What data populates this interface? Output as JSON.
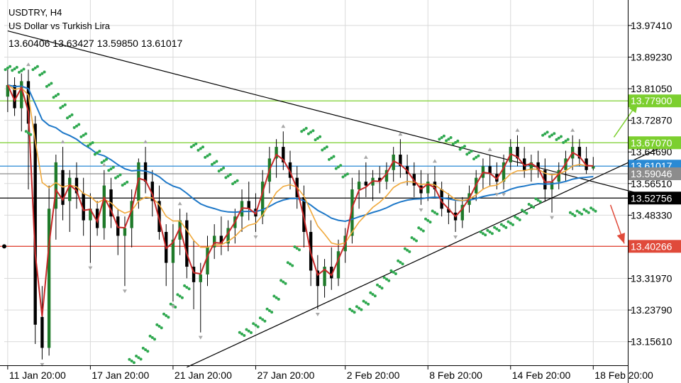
{
  "header": {
    "symbol_timeframe": "USDTRY, H4",
    "description": "US Dollar vs Turkish Lira",
    "ohlc": "13.60406 13.63427 13.59850 13.61017"
  },
  "colors": {
    "candle": "#1f7a2a",
    "price_line": "#c62828",
    "fast_ma": "#f0a93c",
    "slow_ma": "#1e78c8",
    "psar": "#2fa84f",
    "resistance": "#7ccf2f",
    "support": "#e04a3a",
    "current_price": "#2a8ad4",
    "current_marker": "#8c8c8c",
    "trendline": "#000000",
    "fractal_arrow": "#a8a8a8"
  },
  "chart_data": {
    "type": "candlestick",
    "title": "",
    "xlabel": "",
    "ylabel": "",
    "ylim": [
      13.095,
      14.04
    ],
    "x_ticks": [
      "11 Jan 20:00",
      "17 Jan 20:00",
      "21 Jan 20:00",
      "27 Jan 20:00",
      "2 Feb 20:00",
      "8 Feb 20:00",
      "14 Feb 20:00",
      "18 Feb 20:00"
    ],
    "y_ticks": [
      "13.97410",
      "13.89230",
      "13.81050",
      "13.72870",
      "13.64690",
      "13.56510",
      "13.48330",
      "13.31970",
      "13.23790",
      "13.15610"
    ],
    "grid": true,
    "horizontal_levels": [
      {
        "label": "13.77900",
        "value": 13.779,
        "color": "resistance",
        "badge_color": "#7ccf2f"
      },
      {
        "label": "13.67070",
        "value": 13.6707,
        "color": "resistance",
        "badge_color": "#7ccf2f"
      },
      {
        "label": "13.61017",
        "value": 13.61017,
        "color": "current_price",
        "badge_color": "#2a8ad4"
      },
      {
        "label": "13.59046",
        "value": 13.59046,
        "color": "current_marker",
        "badge_color": "#8c8c8c"
      },
      {
        "label": "13.52756",
        "value": 13.52756,
        "color": "trendline",
        "badge_color": "#000000"
      },
      {
        "label": "13.40266",
        "value": 13.40266,
        "color": "support",
        "badge_color": "#e04a3a"
      }
    ],
    "trendlines": [
      {
        "name": "upper",
        "from": {
          "x_index": 0,
          "y": 13.96
        },
        "to": {
          "x_index": 95,
          "y": 13.524
        }
      },
      {
        "name": "lower",
        "from": {
          "x_index": 26,
          "y": 13.09
        },
        "to": {
          "x_index": 95,
          "y": 13.66
        }
      }
    ],
    "projection_arrows": [
      {
        "direction": "up",
        "from": {
          "x_index": 88,
          "y": 13.685
        },
        "to": {
          "x_index": 91.5,
          "y": 13.775
        }
      },
      {
        "direction": "down",
        "from": {
          "x_index": 87.5,
          "y": 13.51
        },
        "to": {
          "x_index": 89.5,
          "y": 13.41
        }
      }
    ],
    "candles": [
      {
        "o": 13.79,
        "h": 13.86,
        "l": 13.75,
        "c": 13.82
      },
      {
        "o": 13.82,
        "h": 13.84,
        "l": 13.74,
        "c": 13.76
      },
      {
        "o": 13.76,
        "h": 13.85,
        "l": 13.7,
        "c": 13.83
      },
      {
        "o": 13.83,
        "h": 13.86,
        "l": 13.55,
        "c": 13.72
      },
      {
        "o": 13.72,
        "h": 13.74,
        "l": 13.15,
        "c": 13.2
      },
      {
        "o": 13.22,
        "h": 13.3,
        "l": 13.11,
        "c": 13.14
      },
      {
        "o": 13.14,
        "h": 13.56,
        "l": 13.12,
        "c": 13.5
      },
      {
        "o": 13.5,
        "h": 13.64,
        "l": 13.42,
        "c": 13.62
      },
      {
        "o": 13.6,
        "h": 13.66,
        "l": 13.47,
        "c": 13.51
      },
      {
        "o": 13.52,
        "h": 13.6,
        "l": 13.44,
        "c": 13.58
      },
      {
        "o": 13.58,
        "h": 13.62,
        "l": 13.5,
        "c": 13.54
      },
      {
        "o": 13.54,
        "h": 13.58,
        "l": 13.43,
        "c": 13.47
      },
      {
        "o": 13.47,
        "h": 13.54,
        "l": 13.36,
        "c": 13.5
      },
      {
        "o": 13.5,
        "h": 13.52,
        "l": 13.43,
        "c": 13.45
      },
      {
        "o": 13.45,
        "h": 13.6,
        "l": 13.42,
        "c": 13.56
      },
      {
        "o": 13.55,
        "h": 13.58,
        "l": 13.45,
        "c": 13.48
      },
      {
        "o": 13.48,
        "h": 13.5,
        "l": 13.38,
        "c": 13.43
      },
      {
        "o": 13.43,
        "h": 13.48,
        "l": 13.3,
        "c": 13.45
      },
      {
        "o": 13.45,
        "h": 13.55,
        "l": 13.4,
        "c": 13.52
      },
      {
        "o": 13.52,
        "h": 13.63,
        "l": 13.5,
        "c": 13.62
      },
      {
        "o": 13.62,
        "h": 13.66,
        "l": 13.54,
        "c": 13.57
      },
      {
        "o": 13.57,
        "h": 13.6,
        "l": 13.48,
        "c": 13.52
      },
      {
        "o": 13.52,
        "h": 13.56,
        "l": 13.42,
        "c": 13.44
      },
      {
        "o": 13.44,
        "h": 13.46,
        "l": 13.3,
        "c": 13.36
      },
      {
        "o": 13.36,
        "h": 13.46,
        "l": 13.26,
        "c": 13.42
      },
      {
        "o": 13.42,
        "h": 13.5,
        "l": 13.38,
        "c": 13.47
      },
      {
        "o": 13.47,
        "h": 13.49,
        "l": 13.32,
        "c": 13.35
      },
      {
        "o": 13.35,
        "h": 13.42,
        "l": 13.24,
        "c": 13.31
      },
      {
        "o": 13.31,
        "h": 13.36,
        "l": 13.18,
        "c": 13.33
      },
      {
        "o": 13.33,
        "h": 13.43,
        "l": 13.3,
        "c": 13.4
      },
      {
        "o": 13.4,
        "h": 13.46,
        "l": 13.37,
        "c": 13.43
      },
      {
        "o": 13.43,
        "h": 13.48,
        "l": 13.38,
        "c": 13.41
      },
      {
        "o": 13.41,
        "h": 13.47,
        "l": 13.39,
        "c": 13.45
      },
      {
        "o": 13.45,
        "h": 13.5,
        "l": 13.41,
        "c": 13.48
      },
      {
        "o": 13.48,
        "h": 13.55,
        "l": 13.44,
        "c": 13.52
      },
      {
        "o": 13.52,
        "h": 13.57,
        "l": 13.47,
        "c": 13.5
      },
      {
        "o": 13.5,
        "h": 13.54,
        "l": 13.44,
        "c": 13.48
      },
      {
        "o": 13.48,
        "h": 13.6,
        "l": 13.46,
        "c": 13.57
      },
      {
        "o": 13.57,
        "h": 13.66,
        "l": 13.54,
        "c": 13.63
      },
      {
        "o": 13.63,
        "h": 13.68,
        "l": 13.58,
        "c": 13.66
      },
      {
        "o": 13.66,
        "h": 13.7,
        "l": 13.6,
        "c": 13.62
      },
      {
        "o": 13.62,
        "h": 13.65,
        "l": 13.55,
        "c": 13.58
      },
      {
        "o": 13.58,
        "h": 13.61,
        "l": 13.5,
        "c": 13.53
      },
      {
        "o": 13.53,
        "h": 13.56,
        "l": 13.4,
        "c": 13.44
      },
      {
        "o": 13.44,
        "h": 13.47,
        "l": 13.3,
        "c": 13.34
      },
      {
        "o": 13.34,
        "h": 13.38,
        "l": 13.24,
        "c": 13.3
      },
      {
        "o": 13.3,
        "h": 13.37,
        "l": 13.27,
        "c": 13.35
      },
      {
        "o": 13.35,
        "h": 13.4,
        "l": 13.29,
        "c": 13.32
      },
      {
        "o": 13.32,
        "h": 13.42,
        "l": 13.3,
        "c": 13.39
      },
      {
        "o": 13.39,
        "h": 13.45,
        "l": 13.36,
        "c": 13.43
      },
      {
        "o": 13.43,
        "h": 13.58,
        "l": 13.41,
        "c": 13.55
      },
      {
        "o": 13.55,
        "h": 13.6,
        "l": 13.5,
        "c": 13.57
      },
      {
        "o": 13.57,
        "h": 13.62,
        "l": 13.53,
        "c": 13.56
      },
      {
        "o": 13.56,
        "h": 13.6,
        "l": 13.52,
        "c": 13.58
      },
      {
        "o": 13.58,
        "h": 13.61,
        "l": 13.54,
        "c": 13.57
      },
      {
        "o": 13.57,
        "h": 13.62,
        "l": 13.55,
        "c": 13.6
      },
      {
        "o": 13.6,
        "h": 13.66,
        "l": 13.57,
        "c": 13.64
      },
      {
        "o": 13.64,
        "h": 13.68,
        "l": 13.58,
        "c": 13.61
      },
      {
        "o": 13.61,
        "h": 13.64,
        "l": 13.56,
        "c": 13.59
      },
      {
        "o": 13.59,
        "h": 13.62,
        "l": 13.53,
        "c": 13.56
      },
      {
        "o": 13.56,
        "h": 13.6,
        "l": 13.51,
        "c": 13.54
      },
      {
        "o": 13.54,
        "h": 13.59,
        "l": 13.52,
        "c": 13.57
      },
      {
        "o": 13.57,
        "h": 13.61,
        "l": 13.53,
        "c": 13.55
      },
      {
        "o": 13.55,
        "h": 13.57,
        "l": 13.48,
        "c": 13.5
      },
      {
        "o": 13.5,
        "h": 13.54,
        "l": 13.46,
        "c": 13.49
      },
      {
        "o": 13.49,
        "h": 13.52,
        "l": 13.44,
        "c": 13.47
      },
      {
        "o": 13.47,
        "h": 13.53,
        "l": 13.45,
        "c": 13.51
      },
      {
        "o": 13.51,
        "h": 13.56,
        "l": 13.49,
        "c": 13.54
      },
      {
        "o": 13.54,
        "h": 13.6,
        "l": 13.52,
        "c": 13.58
      },
      {
        "o": 13.58,
        "h": 13.63,
        "l": 13.55,
        "c": 13.61
      },
      {
        "o": 13.61,
        "h": 13.64,
        "l": 13.56,
        "c": 13.59
      },
      {
        "o": 13.59,
        "h": 13.62,
        "l": 13.55,
        "c": 13.57
      },
      {
        "o": 13.57,
        "h": 13.64,
        "l": 13.55,
        "c": 13.62
      },
      {
        "o": 13.62,
        "h": 13.68,
        "l": 13.6,
        "c": 13.66
      },
      {
        "o": 13.66,
        "h": 13.69,
        "l": 13.61,
        "c": 13.63
      },
      {
        "o": 13.63,
        "h": 13.66,
        "l": 13.58,
        "c": 13.6
      },
      {
        "o": 13.6,
        "h": 13.64,
        "l": 13.57,
        "c": 13.62
      },
      {
        "o": 13.62,
        "h": 13.65,
        "l": 13.58,
        "c": 13.6
      },
      {
        "o": 13.6,
        "h": 13.63,
        "l": 13.52,
        "c": 13.55
      },
      {
        "o": 13.55,
        "h": 13.59,
        "l": 13.49,
        "c": 13.57
      },
      {
        "o": 13.57,
        "h": 13.62,
        "l": 13.55,
        "c": 13.6
      },
      {
        "o": 13.6,
        "h": 13.65,
        "l": 13.57,
        "c": 13.63
      },
      {
        "o": 13.63,
        "h": 13.69,
        "l": 13.6,
        "c": 13.66
      },
      {
        "o": 13.66,
        "h": 13.68,
        "l": 13.61,
        "c": 13.63
      },
      {
        "o": 13.63,
        "h": 13.66,
        "l": 13.59,
        "c": 13.6
      },
      {
        "o": 13.604,
        "h": 13.634,
        "l": 13.599,
        "c": 13.61
      }
    ]
  }
}
